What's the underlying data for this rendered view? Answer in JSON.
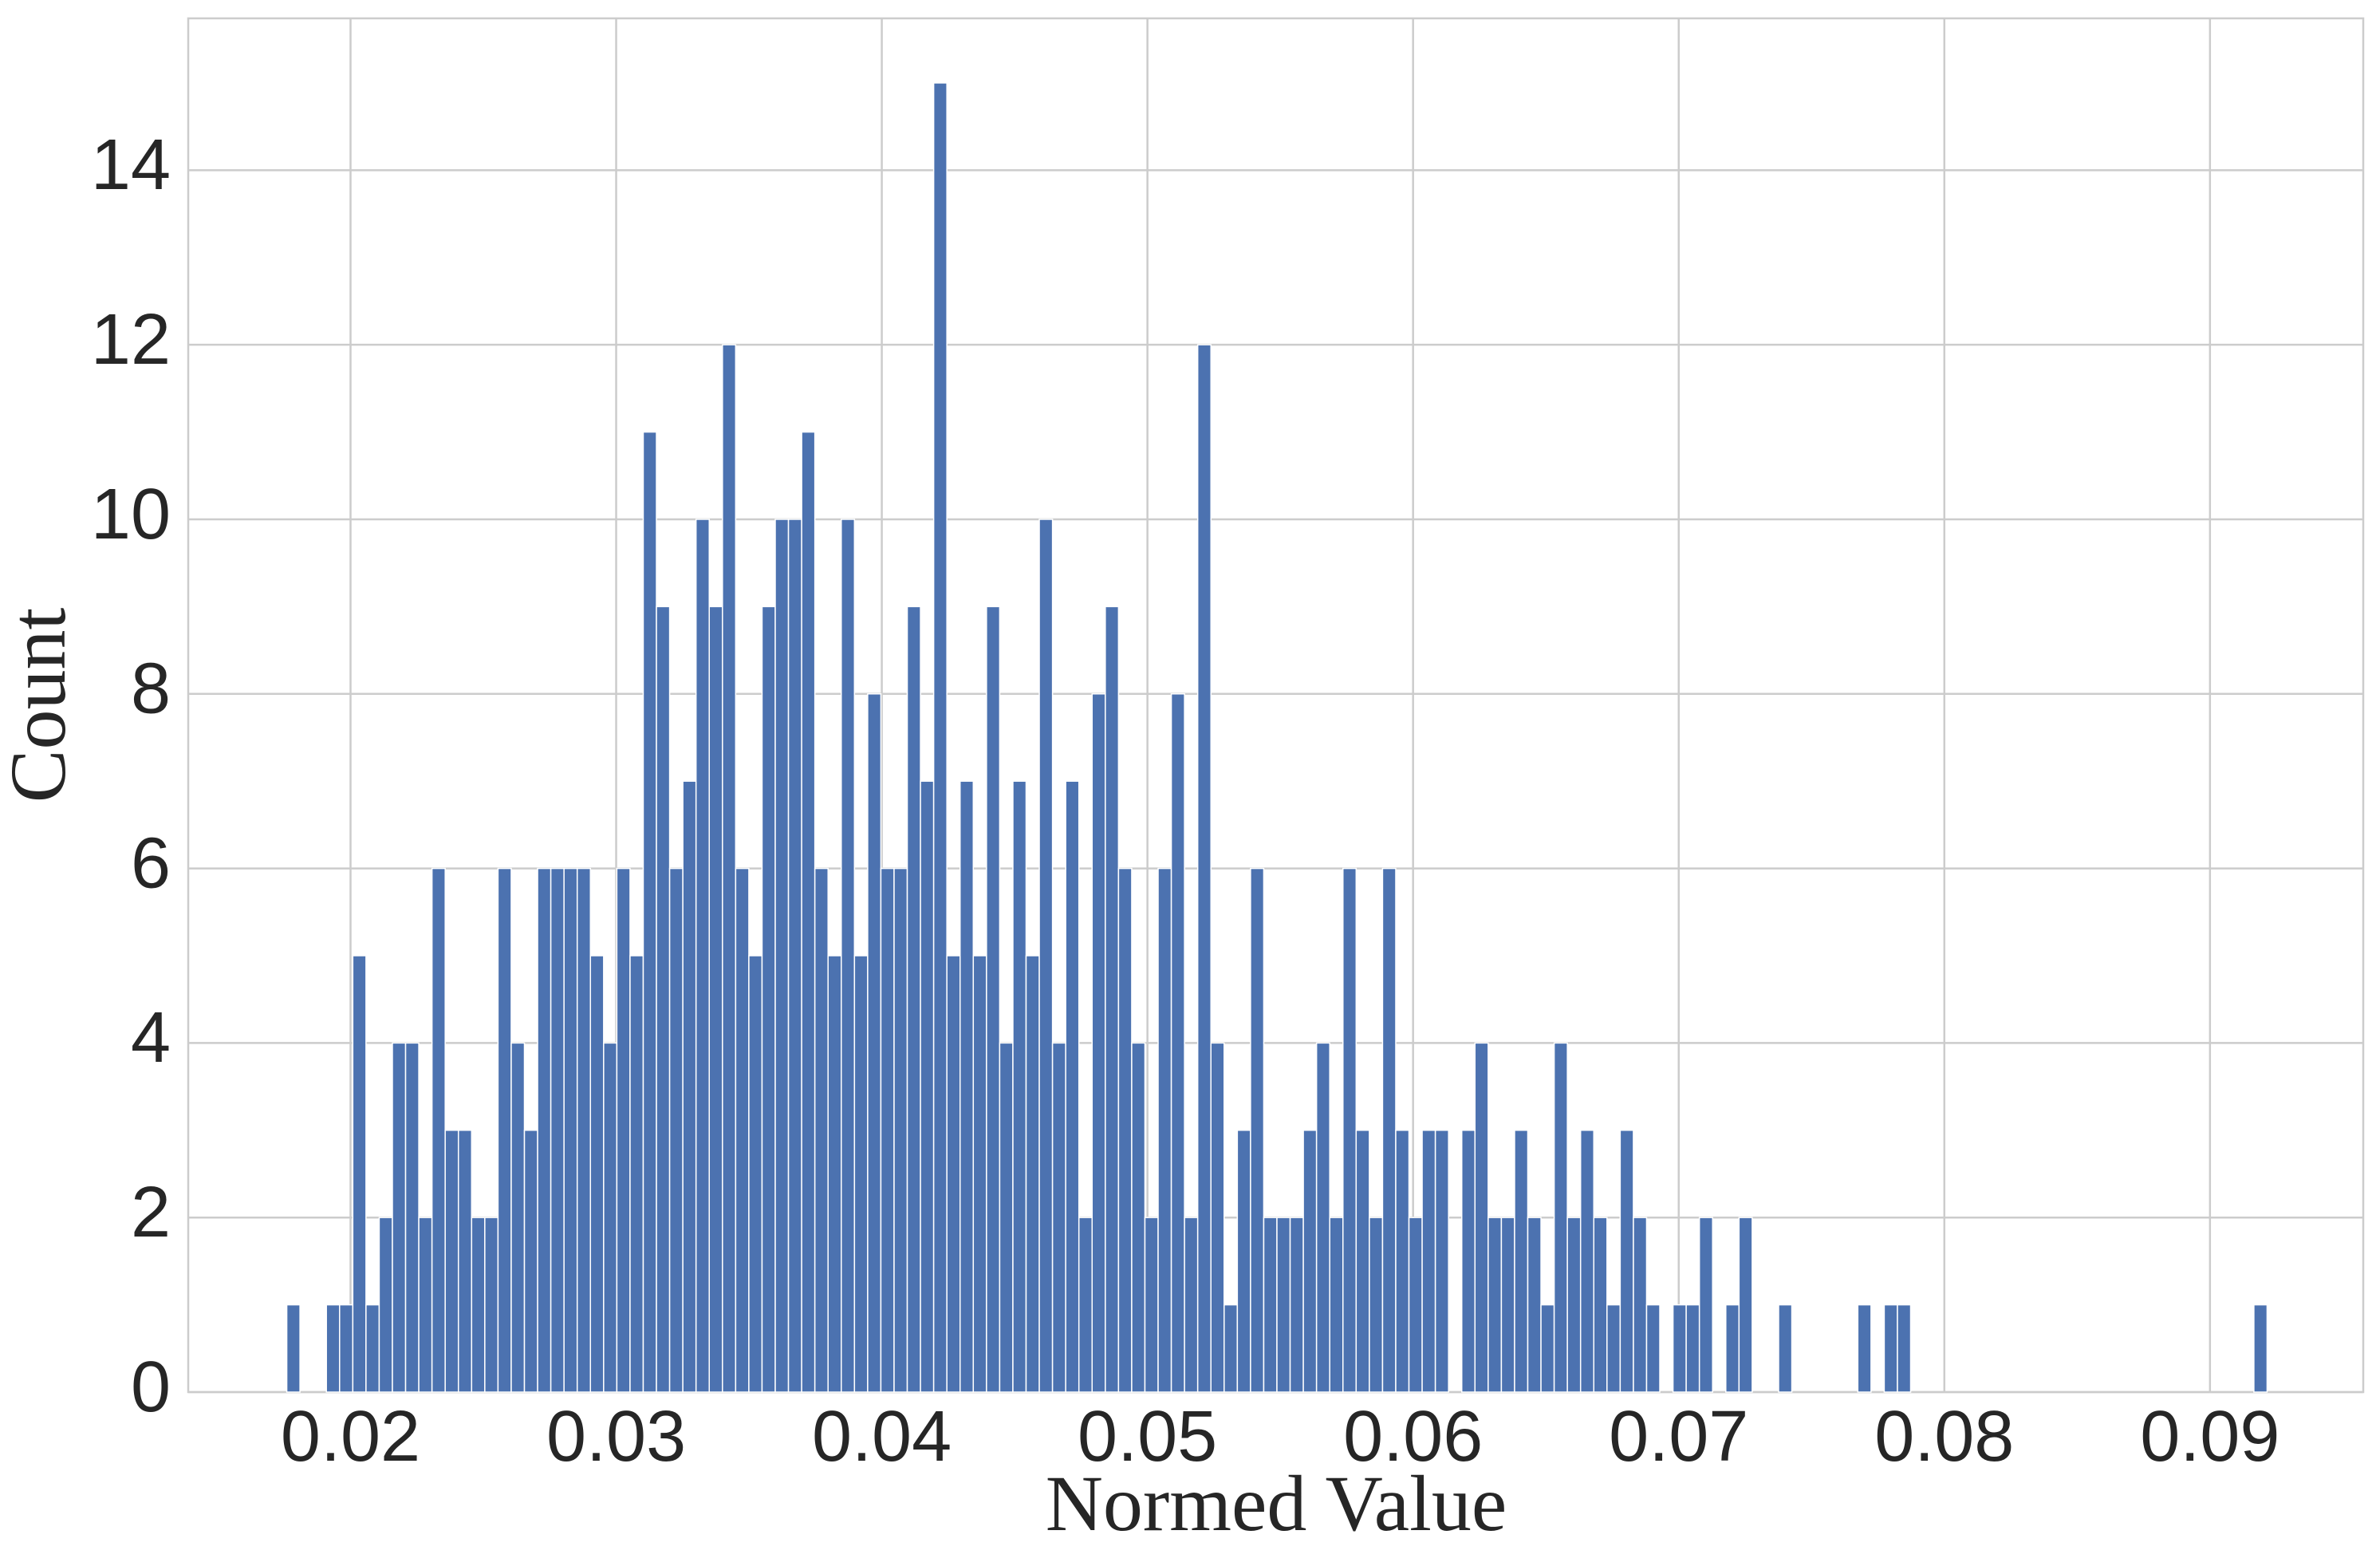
{
  "chart_data": {
    "type": "histogram",
    "xlabel": "Normed Value",
    "ylabel": "Count",
    "color": "#4c72b0",
    "grid": true,
    "xlim": [
      0.01389,
      0.09577
    ],
    "ylim": [
      0,
      15.74
    ],
    "xticks": [
      0.02,
      0.03,
      0.04,
      0.05,
      0.06,
      0.07,
      0.08,
      0.09
    ],
    "yticks": [
      0,
      2,
      4,
      6,
      8,
      10,
      12,
      14
    ],
    "bins": [
      0.0176,
      0.018097,
      0.018594,
      0.019091,
      0.019588,
      0.020085,
      0.020582,
      0.021079,
      0.021576,
      0.022073,
      0.02257,
      0.023067,
      0.023564,
      0.024061,
      0.024558,
      0.025055,
      0.025552,
      0.026049,
      0.026546,
      0.027043,
      0.02754,
      0.028037,
      0.028534,
      0.029031,
      0.029528,
      0.030025,
      0.030522,
      0.031019,
      0.031516,
      0.032013,
      0.03251,
      0.033007,
      0.033504,
      0.034001,
      0.034498,
      0.034995,
      0.035492,
      0.035989,
      0.036486,
      0.036983,
      0.03748,
      0.037977,
      0.038474,
      0.038971,
      0.039468,
      0.039965,
      0.040462,
      0.040959,
      0.041456,
      0.041953,
      0.04245,
      0.042947,
      0.043444,
      0.043941,
      0.044438,
      0.044935,
      0.045432,
      0.045929,
      0.046426,
      0.046923,
      0.04742,
      0.047917,
      0.048414,
      0.048911,
      0.049408,
      0.049905,
      0.050402,
      0.050899,
      0.051396,
      0.051893,
      0.05239,
      0.052887,
      0.053384,
      0.053881,
      0.054378,
      0.054875,
      0.055372,
      0.055869,
      0.056366,
      0.056863,
      0.05736,
      0.057857,
      0.058354,
      0.058851,
      0.059348,
      0.059845,
      0.060342,
      0.060839,
      0.061336,
      0.061833,
      0.06233,
      0.062827,
      0.063324,
      0.063821,
      0.064318,
      0.064815,
      0.065312,
      0.065809,
      0.066306,
      0.066803,
      0.0673,
      0.067797,
      0.068294,
      0.068791,
      0.069288,
      0.069785,
      0.070282,
      0.070779,
      0.071276,
      0.071773,
      0.07227,
      0.072767,
      0.073264,
      0.073761,
      0.074258,
      0.074755,
      0.075252,
      0.075749,
      0.076246,
      0.076743,
      0.07724,
      0.077737,
      0.078234,
      0.078731,
      0.079228,
      0.079725,
      0.080222,
      0.080719,
      0.081216,
      0.081713,
      0.08221,
      0.082707,
      0.083204,
      0.083701,
      0.084198,
      0.084695,
      0.085192,
      0.085689,
      0.086186,
      0.086683,
      0.08718,
      0.087677,
      0.088174,
      0.088671,
      0.089168,
      0.089665,
      0.090162,
      0.090659,
      0.091156,
      0.091653,
      0.09215
    ],
    "values": [
      1,
      0,
      0,
      1,
      1,
      5,
      1,
      2,
      4,
      4,
      2,
      6,
      3,
      3,
      2,
      2,
      6,
      4,
      3,
      6,
      6,
      6,
      6,
      5,
      4,
      6,
      5,
      11,
      9,
      6,
      7,
      10,
      9,
      12,
      6,
      5,
      9,
      10,
      10,
      11,
      6,
      5,
      10,
      5,
      8,
      6,
      6,
      9,
      7,
      15,
      5,
      7,
      5,
      9,
      4,
      7,
      5,
      10,
      4,
      7,
      2,
      8,
      9,
      6,
      4,
      2,
      6,
      8,
      2,
      12,
      4,
      1,
      3,
      6,
      2,
      2,
      2,
      3,
      4,
      2,
      6,
      3,
      2,
      6,
      3,
      2,
      3,
      3,
      0,
      3,
      4,
      2,
      2,
      3,
      2,
      1,
      4,
      2,
      3,
      2,
      1,
      3,
      2,
      1,
      0,
      1,
      1,
      2,
      0,
      1,
      2,
      0,
      0,
      1,
      0,
      0,
      0,
      0,
      0,
      1,
      0,
      1,
      1,
      0,
      0,
      0,
      0,
      0,
      0,
      0,
      0,
      0,
      0,
      0,
      0,
      0,
      0,
      0,
      0,
      0,
      0,
      0,
      0,
      0,
      0,
      0,
      0,
      0,
      0,
      1
    ]
  }
}
